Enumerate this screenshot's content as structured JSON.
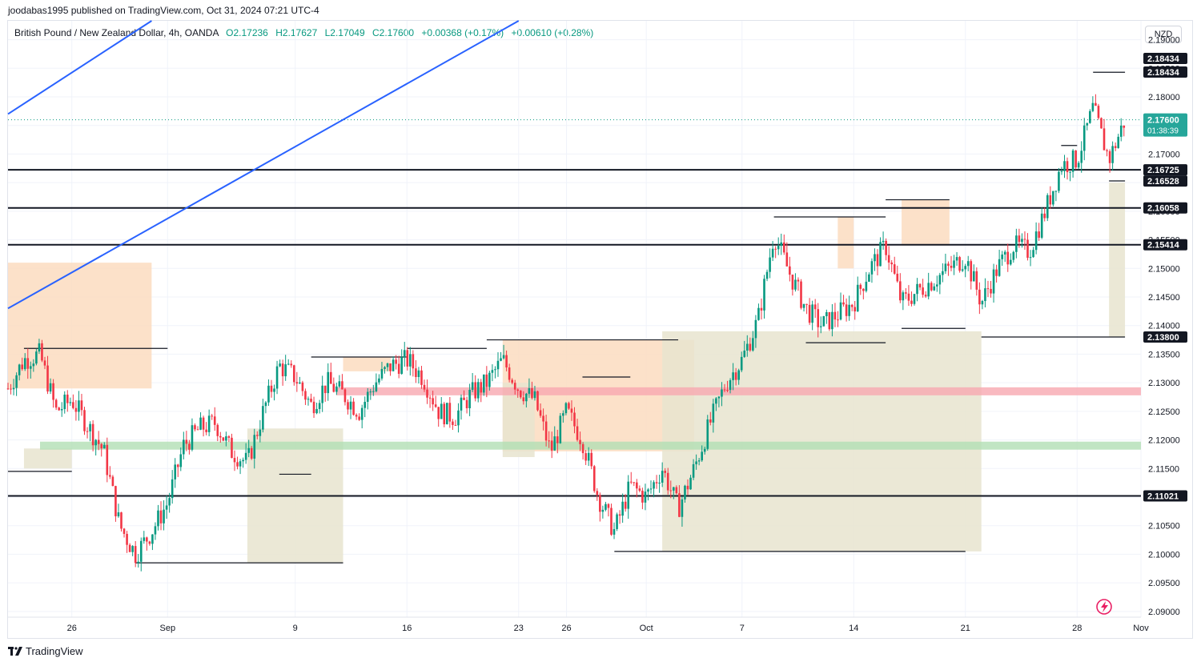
{
  "header": {
    "publisher": "joodabas1995 published on TradingView.com, Oct 31, 2024 07:21 UTC-4"
  },
  "legend": {
    "symbol": "British Pound / New Zealand Dollar, 4h, OANDA",
    "open": "O2.17236",
    "high": "H2.17627",
    "low": "L2.17049",
    "close": "C2.17600",
    "change": "+0.00368 (+0.17%)",
    "change2": "+0.00610 (+0.28%)"
  },
  "currency": "NZD",
  "footer": {
    "brand": "TradingView"
  },
  "colors": {
    "up": "#089981",
    "down": "#f23645",
    "trendline": "#2962ff",
    "level": "#131722",
    "supply": "#fcdcc0",
    "demand": "#e8e4cf",
    "pink_band": "#f7a8b0",
    "green_band": "#b2dfb4",
    "price_tag": "#26a69a"
  },
  "chart_data": {
    "type": "candlestick",
    "symbol": "GBPNZD",
    "timeframe": "4h",
    "y_ticks": [
      2.09,
      2.095,
      2.1,
      2.105,
      2.11,
      2.115,
      2.12,
      2.125,
      2.13,
      2.135,
      2.14,
      2.145,
      2.15,
      2.155,
      2.16,
      2.165,
      2.17,
      2.175,
      2.18,
      2.185,
      2.19
    ],
    "y_tick_labels": [
      "2.09000",
      "2.09500",
      "2.10000",
      "2.10500",
      "2.11000",
      "2.11500",
      "2.12000",
      "2.12500",
      "2.13000",
      "2.13500",
      "2.14000",
      "2.14500",
      "2.15000",
      "2.15500",
      "2.16000",
      "2.16500",
      "2.17000",
      "2.17500",
      "2.18000",
      "2.18500",
      "2.19000"
    ],
    "ylim": [
      2.089,
      2.1933
    ],
    "x_labels": [
      {
        "label": "26",
        "date": "2024-08-26"
      },
      {
        "label": "Sep",
        "date": "2024-09-01"
      },
      {
        "label": "9",
        "date": "2024-09-09"
      },
      {
        "label": "16",
        "date": "2024-09-16"
      },
      {
        "label": "23",
        "date": "2024-09-23"
      },
      {
        "label": "26",
        "date": "2024-09-26"
      },
      {
        "label": "Oct",
        "date": "2024-10-01"
      },
      {
        "label": "7",
        "date": "2024-10-07"
      },
      {
        "label": "14",
        "date": "2024-10-14"
      },
      {
        "label": "21",
        "date": "2024-10-21"
      },
      {
        "label": "28",
        "date": "2024-10-28"
      },
      {
        "label": "Nov",
        "date": "2024-11-01"
      }
    ],
    "price_path": [
      [
        "2024-08-22",
        2.129
      ],
      [
        "2024-08-23",
        2.134
      ],
      [
        "2024-08-24",
        2.135
      ],
      [
        "2024-08-25",
        2.125
      ],
      [
        "2024-08-26",
        2.127
      ],
      [
        "2024-08-27",
        2.1225
      ],
      [
        "2024-08-28",
        2.118
      ],
      [
        "2024-08-29",
        2.105
      ],
      [
        "2024-08-30",
        2.1
      ],
      [
        "2024-08-31",
        2.104
      ],
      [
        "2024-09-01",
        2.109
      ],
      [
        "2024-09-02",
        2.119
      ],
      [
        "2024-09-03",
        2.122
      ],
      [
        "2024-09-04",
        2.123
      ],
      [
        "2024-09-05",
        2.118
      ],
      [
        "2024-09-06",
        2.116
      ],
      [
        "2024-09-07",
        2.125
      ],
      [
        "2024-09-08",
        2.133
      ],
      [
        "2024-09-09",
        2.131
      ],
      [
        "2024-09-10",
        2.126
      ],
      [
        "2024-09-11",
        2.13
      ],
      [
        "2024-09-12",
        2.128
      ],
      [
        "2024-09-13",
        2.125
      ],
      [
        "2024-09-14",
        2.13
      ],
      [
        "2024-09-15",
        2.133
      ],
      [
        "2024-09-16",
        2.134
      ],
      [
        "2024-09-17",
        2.131
      ],
      [
        "2024-09-18",
        2.125
      ],
      [
        "2024-09-19",
        2.124
      ],
      [
        "2024-09-20",
        2.128
      ],
      [
        "2024-09-21",
        2.13
      ],
      [
        "2024-09-22",
        2.134
      ],
      [
        "2024-09-23",
        2.129
      ],
      [
        "2024-09-24",
        2.127
      ],
      [
        "2024-09-25",
        2.118
      ],
      [
        "2024-09-26",
        2.125
      ],
      [
        "2024-09-27",
        2.12
      ],
      [
        "2024-09-28",
        2.11
      ],
      [
        "2024-09-29",
        2.104
      ],
      [
        "2024-09-30",
        2.112
      ],
      [
        "2024-10-01",
        2.11
      ],
      [
        "2024-10-02",
        2.115
      ],
      [
        "2024-10-03",
        2.108
      ],
      [
        "2024-10-04",
        2.115
      ],
      [
        "2024-10-05",
        2.123
      ],
      [
        "2024-10-06",
        2.13
      ],
      [
        "2024-10-07",
        2.134
      ],
      [
        "2024-10-08",
        2.141
      ],
      [
        "2024-10-09",
        2.156
      ],
      [
        "2024-10-10",
        2.149
      ],
      [
        "2024-10-11",
        2.143
      ],
      [
        "2024-10-12",
        2.14
      ],
      [
        "2024-10-13",
        2.142
      ],
      [
        "2024-10-14",
        2.144
      ],
      [
        "2024-10-15",
        2.15
      ],
      [
        "2024-10-16",
        2.154
      ],
      [
        "2024-10-17",
        2.144
      ],
      [
        "2024-10-18",
        2.146
      ],
      [
        "2024-10-19",
        2.148
      ],
      [
        "2024-10-20",
        2.15
      ],
      [
        "2024-10-21",
        2.152
      ],
      [
        "2024-10-22",
        2.144
      ],
      [
        "2024-10-23",
        2.15
      ],
      [
        "2024-10-24",
        2.154
      ],
      [
        "2024-10-25",
        2.153
      ],
      [
        "2024-10-26",
        2.16
      ],
      [
        "2024-10-27",
        2.168
      ],
      [
        "2024-10-28",
        2.169
      ],
      [
        "2024-10-29",
        2.178
      ],
      [
        "2024-10-30",
        2.169
      ],
      [
        "2024-10-31",
        2.176
      ]
    ],
    "current_price": {
      "value": 2.176,
      "label": "2.17600",
      "countdown": "01:38:39"
    },
    "horizontal_levels": [
      {
        "value": 2.16725,
        "label": "2.16725"
      },
      {
        "value": 2.16058,
        "label": "2.16058"
      },
      {
        "value": 2.15414,
        "label": "2.15414"
      },
      {
        "value": 2.11021,
        "label": "2.11021"
      }
    ],
    "price_tags": [
      {
        "value": 2.18434,
        "label": "2.18434"
      },
      {
        "value": 2.18434,
        "label": "2.18434"
      },
      {
        "value": 2.16528,
        "label": "2.16528"
      },
      {
        "value": 2.138,
        "label": "2.13800"
      }
    ],
    "bands": [
      {
        "kind": "pink",
        "value": 2.1285
      },
      {
        "kind": "green",
        "value": 2.119
      }
    ],
    "trendlines": [
      {
        "from": [
          "2024-08-22",
          2.177
        ],
        "to": [
          "2024-08-31",
          2.1933
        ]
      },
      {
        "from": [
          "2024-08-22",
          2.143
        ],
        "to": [
          "2024-09-23",
          2.1933
        ]
      }
    ],
    "zones": [
      {
        "kind": "supply",
        "x0": "2024-08-22",
        "x1": "2024-08-31",
        "y0": 2.151,
        "y1": 2.129
      },
      {
        "kind": "supply",
        "x0": "2024-09-12",
        "x1": "2024-09-15",
        "y0": 2.1345,
        "y1": 2.132
      },
      {
        "kind": "supply",
        "x0": "2024-09-22",
        "x1": "2024-10-04",
        "y0": 2.1375,
        "y1": 2.118
      },
      {
        "kind": "supply",
        "x0": "2024-10-13",
        "x1": "2024-10-14",
        "y0": 2.159,
        "y1": 2.15
      },
      {
        "kind": "supply",
        "x0": "2024-10-17",
        "x1": "2024-10-20",
        "y0": 2.162,
        "y1": 2.154
      },
      {
        "kind": "demand",
        "x0": "2024-08-23",
        "x1": "2024-08-26",
        "y0": 2.115,
        "y1": 2.1185
      },
      {
        "kind": "demand",
        "x0": "2024-09-06",
        "x1": "2024-09-12",
        "y0": 2.0985,
        "y1": 2.122
      },
      {
        "kind": "demand",
        "x0": "2024-09-22",
        "x1": "2024-09-24",
        "y0": 2.117,
        "y1": 2.13
      },
      {
        "kind": "demand",
        "x0": "2024-10-02",
        "x1": "2024-10-22",
        "y0": 2.1005,
        "y1": 2.139
      },
      {
        "kind": "demand",
        "x0": "2024-10-30",
        "x1": "2024-10-31",
        "y0": 2.138,
        "y1": 2.165
      }
    ],
    "structure_lines": [
      {
        "x0": "2024-08-22",
        "x1": "2024-08-26",
        "y": 2.1145
      },
      {
        "x0": "2024-08-23",
        "x1": "2024-09-01",
        "y": 2.136
      },
      {
        "x0": "2024-08-30",
        "x1": "2024-09-12",
        "y": 2.0985
      },
      {
        "x0": "2024-09-08",
        "x1": "2024-09-10",
        "y": 2.114
      },
      {
        "x0": "2024-09-10",
        "x1": "2024-09-16",
        "y": 2.1345
      },
      {
        "x0": "2024-09-16",
        "x1": "2024-09-21",
        "y": 2.136
      },
      {
        "x0": "2024-09-21",
        "x1": "2024-10-03",
        "y": 2.1375
      },
      {
        "x0": "2024-09-27",
        "x1": "2024-09-30",
        "y": 2.131
      },
      {
        "x0": "2024-09-29",
        "x1": "2024-10-21",
        "y": 2.1005
      },
      {
        "x0": "2024-10-09",
        "x1": "2024-10-16",
        "y": 2.159
      },
      {
        "x0": "2024-10-11",
        "x1": "2024-10-16",
        "y": 2.137
      },
      {
        "x0": "2024-10-16",
        "x1": "2024-10-20",
        "y": 2.162
      },
      {
        "x0": "2024-10-17",
        "x1": "2024-10-21",
        "y": 2.1395
      },
      {
        "x0": "2024-10-22",
        "x1": "2024-10-31",
        "y": 2.138
      },
      {
        "x0": "2024-10-27",
        "x1": "2024-10-28",
        "y": 2.1715
      },
      {
        "x0": "2024-10-29",
        "x1": "2024-10-31",
        "y": 2.1843
      },
      {
        "x0": "2024-10-30",
        "x1": "2024-10-31",
        "y": 2.1653
      }
    ]
  }
}
